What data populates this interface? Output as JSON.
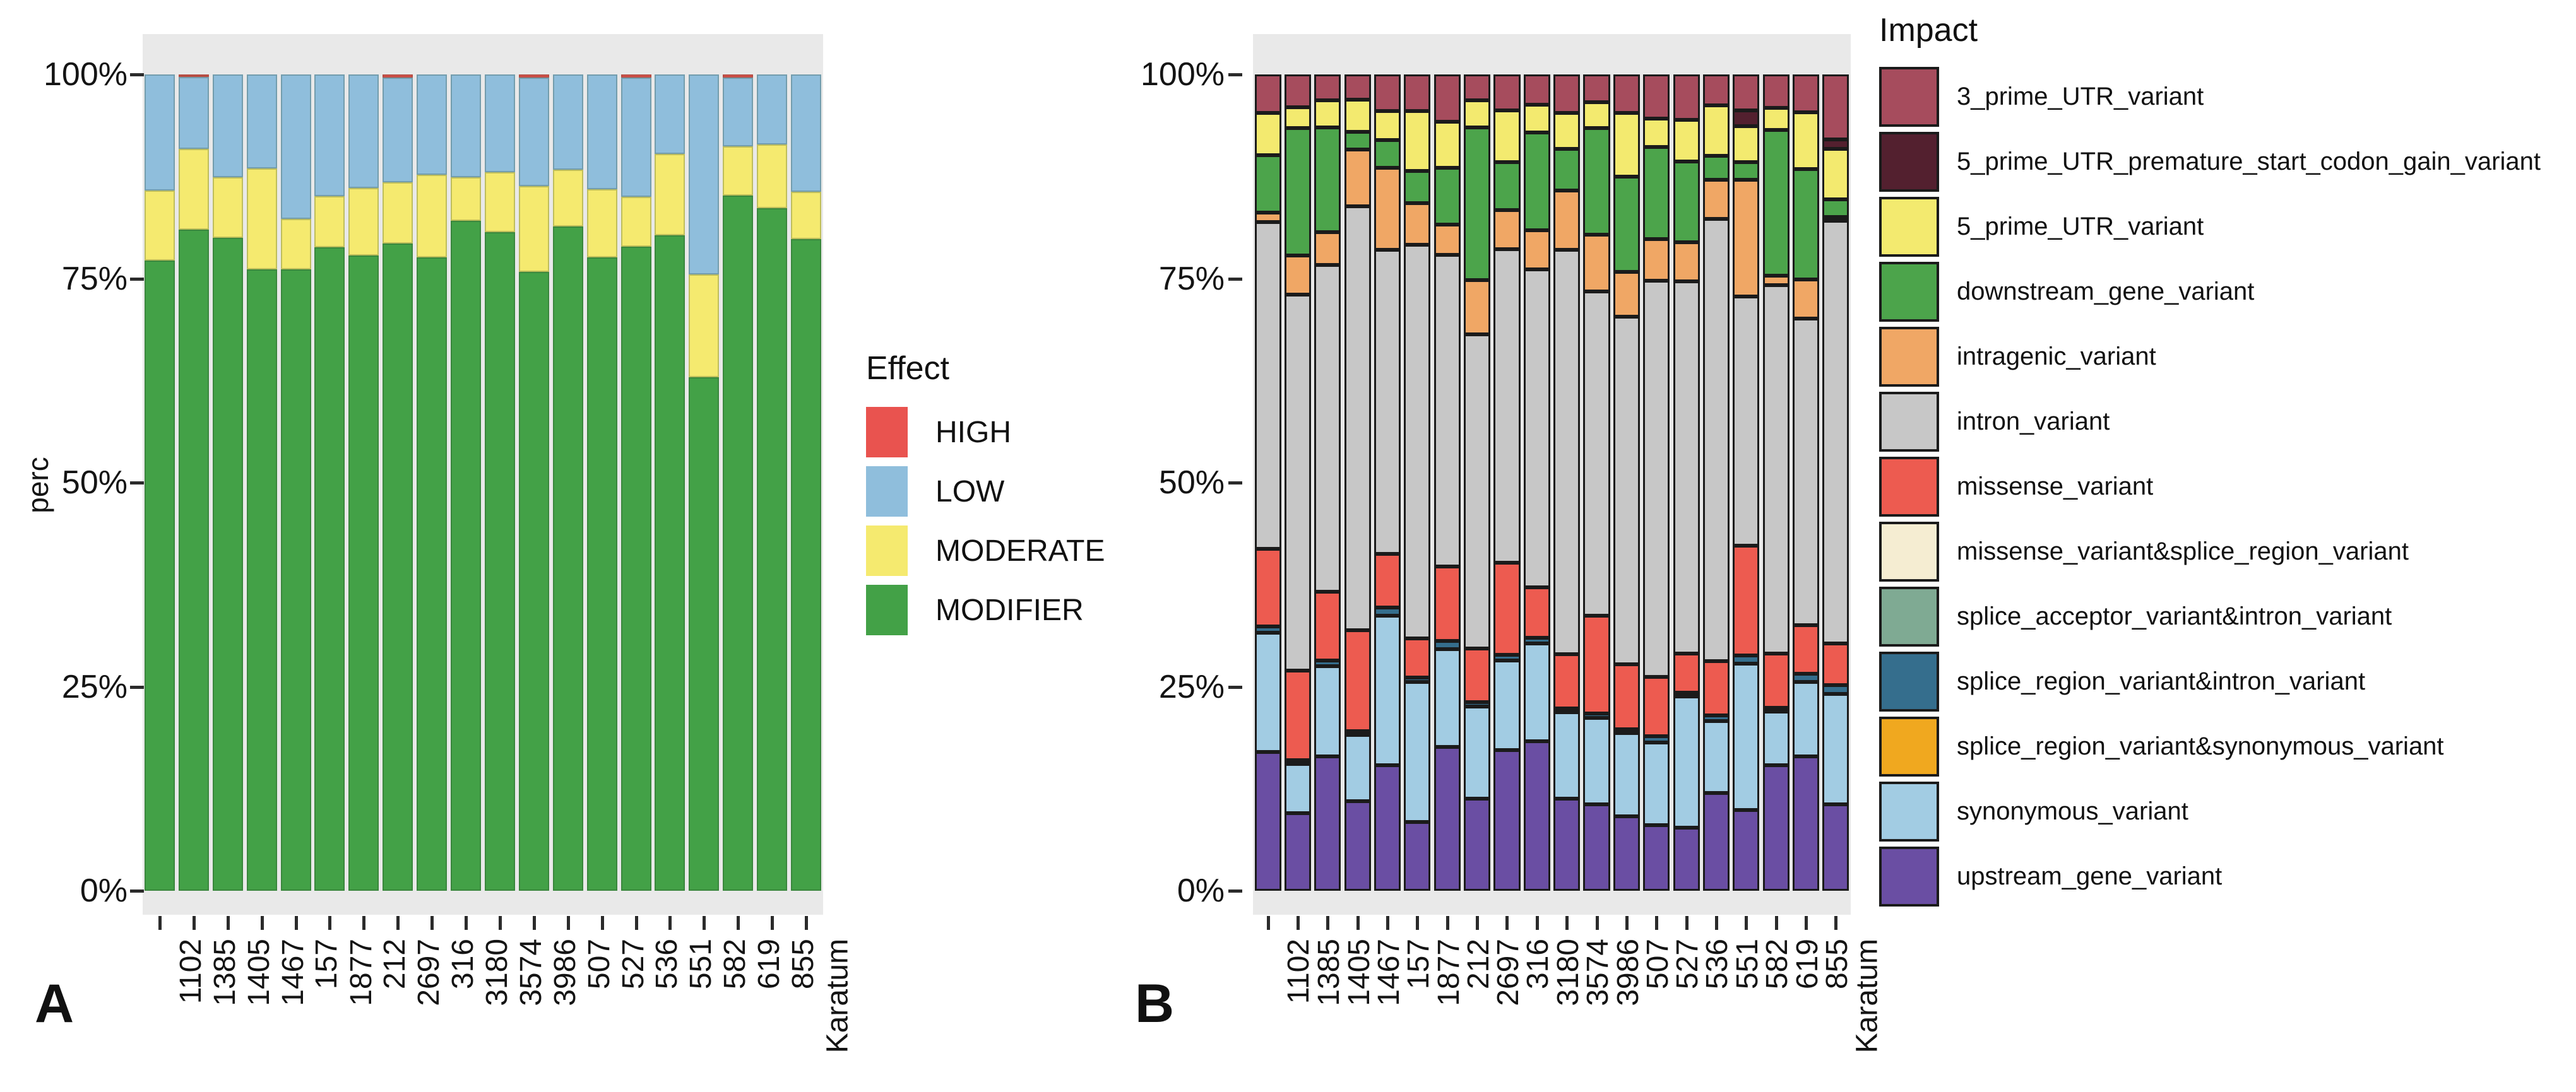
{
  "ui": {
    "panel_a_letter": "A",
    "panel_b_letter": "B"
  },
  "chart_data": [
    {
      "id": "A",
      "type": "bar",
      "stacked": true,
      "units": "percent",
      "ylabel": "perc",
      "y_ticks": [
        "100%",
        "75%",
        "50%",
        "25%",
        "0%"
      ],
      "ylim": [
        0,
        100
      ],
      "grid": false,
      "legend_title": "Effect",
      "legend_position": "right",
      "categories": [
        "1102",
        "1385",
        "1405",
        "1467",
        "157",
        "1877",
        "212",
        "2697",
        "316",
        "3180",
        "3574",
        "3986",
        "507",
        "527",
        "536",
        "551",
        "582",
        "619",
        "855",
        "Karatum"
      ],
      "series": [
        {
          "name": "HIGH",
          "color": "#E9534F",
          "values": [
            0,
            0.3,
            0,
            0,
            0,
            0,
            0,
            0.4,
            0,
            0,
            0,
            0.4,
            0,
            0,
            0.4,
            0,
            0,
            0.4,
            0,
            0
          ]
        },
        {
          "name": "LOW",
          "color": "#8FBEDC",
          "values": [
            14.2,
            8.8,
            12.6,
            11.5,
            17.7,
            14.9,
            13.9,
            12.8,
            12.3,
            12.6,
            12.0,
            13.3,
            11.7,
            14.1,
            14.6,
            9.7,
            24.5,
            8.4,
            8.6,
            14.4
          ]
        },
        {
          "name": "MODERATE",
          "color": "#F5EA6F",
          "values": [
            8.6,
            9.9,
            7.4,
            12.4,
            6.2,
            6.3,
            8.3,
            7.5,
            10.1,
            5.3,
            7.3,
            10.5,
            6.9,
            8.3,
            6.1,
            10.0,
            12.6,
            6.0,
            7.8,
            5.8
          ]
        },
        {
          "name": "MODIFIER",
          "color": "#43A147",
          "values": [
            77.2,
            81.0,
            80.0,
            76.1,
            76.1,
            78.8,
            77.8,
            79.3,
            77.6,
            82.1,
            80.7,
            75.8,
            81.4,
            77.6,
            78.9,
            80.3,
            62.9,
            85.2,
            83.6,
            79.8
          ]
        }
      ]
    },
    {
      "id": "B",
      "type": "bar",
      "stacked": true,
      "units": "percent",
      "ylabel": "",
      "y_ticks": [
        "100%",
        "75%",
        "50%",
        "25%",
        "0%"
      ],
      "ylim": [
        0,
        100
      ],
      "grid": false,
      "legend_title": "Impact",
      "legend_position": "right",
      "categories": [
        "1102",
        "1385",
        "1405",
        "1467",
        "157",
        "1877",
        "212",
        "2697",
        "316",
        "3180",
        "3574",
        "3986",
        "507",
        "527",
        "536",
        "551",
        "582",
        "619",
        "855",
        "Karatum"
      ],
      "series": [
        {
          "name": "3_prime_UTR_variant",
          "color": "#A64C5D",
          "values": [
            4.7,
            4.0,
            3.2,
            3.1,
            4.5,
            4.5,
            5.8,
            3.2,
            4.4,
            3.7,
            4.7,
            3.4,
            4.7,
            5.4,
            5.6,
            3.8,
            4.4,
            4.1,
            4.6,
            8.0
          ]
        },
        {
          "name": "5_prime_UTR_premature_start_codon_gain_variant",
          "color": "#53202F",
          "values": [
            0,
            0,
            0,
            0,
            0,
            0,
            0,
            0,
            0,
            0,
            0,
            0,
            0,
            0,
            0,
            0,
            1.9,
            0,
            0,
            1.1
          ]
        },
        {
          "name": "5_prime_UTR_variant",
          "color": "#F3EA6F",
          "values": [
            5.2,
            2.6,
            3.3,
            3.9,
            3.5,
            7.3,
            5.6,
            3.3,
            6.3,
            3.4,
            4.4,
            3.2,
            7.8,
            3.5,
            5.1,
            6.2,
            4.4,
            2.7,
            7.0,
            6.2
          ]
        },
        {
          "name": "downstream_gene_variant",
          "color": "#4CA44B",
          "values": [
            7.0,
            15.6,
            12.8,
            2.2,
            3.4,
            4.0,
            7.0,
            18.7,
            5.9,
            12.0,
            5.1,
            13.0,
            11.7,
            11.3,
            9.9,
            2.9,
            2.2,
            17.9,
            13.5,
            2.2
          ]
        },
        {
          "name": "intragenic_variant",
          "color": "#F0A765",
          "values": [
            1.2,
            4.8,
            4.0,
            7.0,
            10.1,
            5.1,
            3.7,
            6.6,
            4.8,
            4.8,
            7.3,
            7.0,
            5.5,
            5.1,
            4.8,
            4.8,
            14.3,
            1.1,
            4.8,
            0.4
          ]
        },
        {
          "name": "intron_variant",
          "color": "#C7C7C7",
          "values": [
            40.0,
            46.0,
            40.1,
            51.9,
            37.2,
            48.2,
            38.2,
            38.5,
            38.4,
            38.9,
            49.6,
            39.7,
            42.6,
            48.5,
            45.6,
            54.2,
            30.5,
            45.2,
            37.6,
            51.8
          ]
        },
        {
          "name": "missense_variant",
          "color": "#ED5B50",
          "values": [
            9.5,
            11.0,
            8.4,
            12.4,
            6.6,
            4.8,
            9.1,
            6.6,
            11.3,
            6.2,
            6.6,
            12.0,
            8.0,
            7.3,
            4.8,
            6.6,
            13.5,
            6.6,
            5.9,
            5.1
          ]
        },
        {
          "name": "missense_variant&splice_region_variant",
          "color": "#F5EDD2",
          "values": [
            0,
            0,
            0,
            0,
            0,
            0,
            0,
            0,
            0,
            0,
            0,
            0,
            0,
            0,
            0,
            0,
            0,
            0,
            0,
            0
          ]
        },
        {
          "name": "splice_acceptor_variant&intron_variant",
          "color": "#7FAA93",
          "values": [
            0,
            0,
            0,
            0,
            0,
            0,
            0,
            0,
            0,
            0,
            0,
            0,
            0,
            0,
            0,
            0,
            0,
            0,
            0,
            0
          ]
        },
        {
          "name": "splice_region_variant&intron_variant",
          "color": "#356E8D",
          "values": [
            0.8,
            0.5,
            0.7,
            0.4,
            1.0,
            0.5,
            1.0,
            0.5,
            0.7,
            0.7,
            0.4,
            0.5,
            0.4,
            0.7,
            0.4,
            0.7,
            1.0,
            0.4,
            1.0,
            1.1
          ]
        },
        {
          "name": "splice_region_variant&synonymous_variant",
          "color": "#F0A81F",
          "values": [
            0,
            0,
            0,
            0,
            0,
            0,
            0,
            0,
            0,
            0,
            0,
            0,
            0,
            0,
            0,
            0,
            0,
            0,
            0,
            0
          ]
        },
        {
          "name": "synonymous_variant",
          "color": "#A2CCE3",
          "values": [
            14.6,
            6.0,
            11.0,
            8.1,
            18.3,
            17.2,
            12.0,
            11.3,
            11.0,
            12.0,
            10.6,
            10.6,
            10.2,
            10.2,
            16.1,
            8.8,
            17.9,
            6.6,
            9.1,
            13.5
          ]
        },
        {
          "name": "upstream_gene_variant",
          "color": "#6A4EA3",
          "values": [
            17.0,
            9.5,
            16.5,
            11.0,
            15.4,
            8.4,
            17.6,
            11.3,
            17.2,
            18.3,
            11.3,
            10.6,
            9.1,
            8.0,
            7.7,
            12.0,
            9.9,
            15.4,
            16.5,
            10.6
          ]
        }
      ]
    }
  ]
}
